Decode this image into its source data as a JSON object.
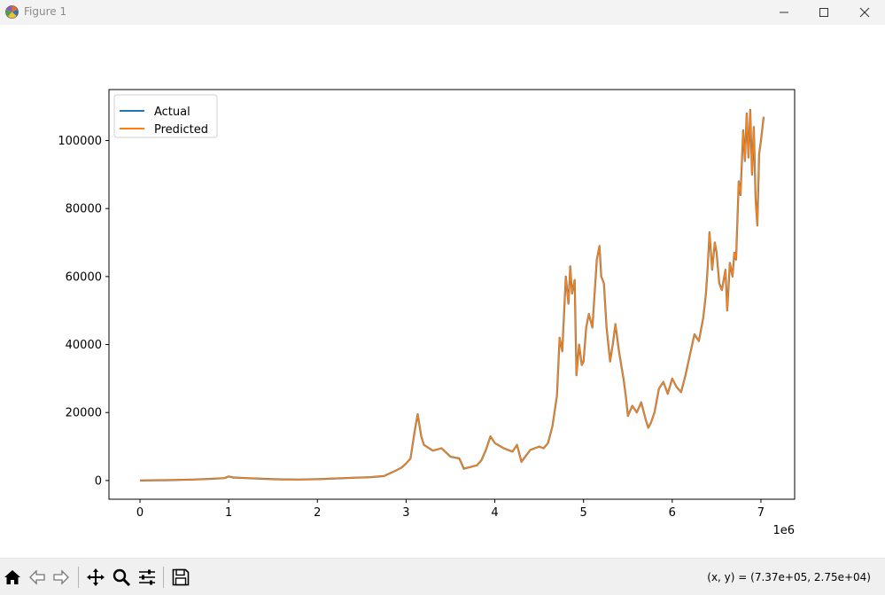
{
  "window": {
    "title": "Figure 1",
    "icon": "matplotlib-logo-icon",
    "controls": [
      "minimize-icon",
      "maximize-icon",
      "close-icon"
    ]
  },
  "toolbar": {
    "buttons": [
      "home-icon",
      "back-arrow-icon",
      "forward-arrow-icon",
      "pan-icon",
      "zoom-icon",
      "configure-subplots-icon",
      "save-icon"
    ],
    "coordinate_readout": "(x, y) = (7.37e+05, 2.75e+04)"
  },
  "chart_data": {
    "type": "line",
    "title": "",
    "xlabel": "",
    "ylabel": "",
    "x_offset_label": "1e6",
    "xlim": [
      -350000,
      7380000
    ],
    "ylim": [
      -5500,
      115000
    ],
    "xticks": [
      0,
      1000000,
      2000000,
      3000000,
      4000000,
      5000000,
      6000000,
      7000000
    ],
    "xtick_labels": [
      "0",
      "1",
      "2",
      "3",
      "4",
      "5",
      "6",
      "7"
    ],
    "yticks": [
      0,
      20000,
      40000,
      60000,
      80000,
      100000
    ],
    "ytick_labels": [
      "0",
      "20000",
      "40000",
      "60000",
      "80000",
      "100000"
    ],
    "grid": false,
    "legend": {
      "placement": "upper-left",
      "entries": [
        "Actual",
        "Predicted"
      ]
    },
    "series": [
      {
        "name": "Actual",
        "color": "#1f77b4"
      },
      {
        "name": "Predicted",
        "color": "#ff7f0e"
      }
    ],
    "x": [
      0,
      300000,
      600000,
      800000,
      950000,
      1000000,
      1050000,
      1200000,
      1400000,
      1600000,
      1800000,
      2000000,
      2200000,
      2400000,
      2600000,
      2750000,
      2850000,
      2950000,
      3000000,
      3050000,
      3100000,
      3130000,
      3170000,
      3200000,
      3300000,
      3400000,
      3500000,
      3600000,
      3650000,
      3700000,
      3800000,
      3850000,
      3900000,
      3950000,
      4000000,
      4100000,
      4200000,
      4250000,
      4300000,
      4400000,
      4500000,
      4550000,
      4600000,
      4650000,
      4700000,
      4730000,
      4760000,
      4800000,
      4830000,
      4850000,
      4870000,
      4900000,
      4920000,
      4950000,
      4980000,
      5000000,
      5030000,
      5060000,
      5080000,
      5100000,
      5150000,
      5180000,
      5200000,
      5230000,
      5260000,
      5300000,
      5330000,
      5360000,
      5400000,
      5450000,
      5480000,
      5500000,
      5550000,
      5600000,
      5650000,
      5700000,
      5730000,
      5760000,
      5800000,
      5850000,
      5900000,
      5950000,
      6000000,
      6050000,
      6100000,
      6150000,
      6200000,
      6250000,
      6300000,
      6350000,
      6380000,
      6400000,
      6420000,
      6450000,
      6480000,
      6500000,
      6530000,
      6560000,
      6600000,
      6620000,
      6650000,
      6680000,
      6700000,
      6720000,
      6750000,
      6770000,
      6800000,
      6820000,
      6840000,
      6860000,
      6880000,
      6900000,
      6920000,
      6940000,
      6960000,
      6980000,
      7000000,
      7030000
    ],
    "values": [
      0,
      100,
      300,
      500,
      700,
      1200,
      900,
      700,
      500,
      350,
      300,
      400,
      600,
      800,
      1000,
      1300,
      2500,
      3800,
      5000,
      6500,
      15000,
      19500,
      13000,
      10500,
      8800,
      9500,
      7000,
      6500,
      3500,
      3800,
      4500,
      6000,
      9000,
      13000,
      11000,
      9500,
      8500,
      10500,
      5500,
      9000,
      10000,
      9500,
      11000,
      16000,
      25000,
      42000,
      38000,
      60000,
      52000,
      63000,
      55000,
      59000,
      31000,
      40000,
      34000,
      35000,
      45000,
      49000,
      47000,
      45000,
      65000,
      69000,
      60000,
      58000,
      45000,
      35000,
      40000,
      46000,
      38000,
      30000,
      24000,
      19000,
      22000,
      20000,
      23000,
      18000,
      15500,
      17000,
      20000,
      27000,
      29000,
      25500,
      30000,
      27500,
      26000,
      31000,
      37000,
      43000,
      41000,
      48000,
      55000,
      63000,
      73000,
      62000,
      70000,
      67000,
      58000,
      56000,
      62000,
      50000,
      64000,
      60000,
      67000,
      65000,
      88000,
      84000,
      103000,
      94000,
      108000,
      95000,
      109000,
      90000,
      104000,
      83000,
      75000,
      96000,
      100000,
      107000
    ]
  }
}
